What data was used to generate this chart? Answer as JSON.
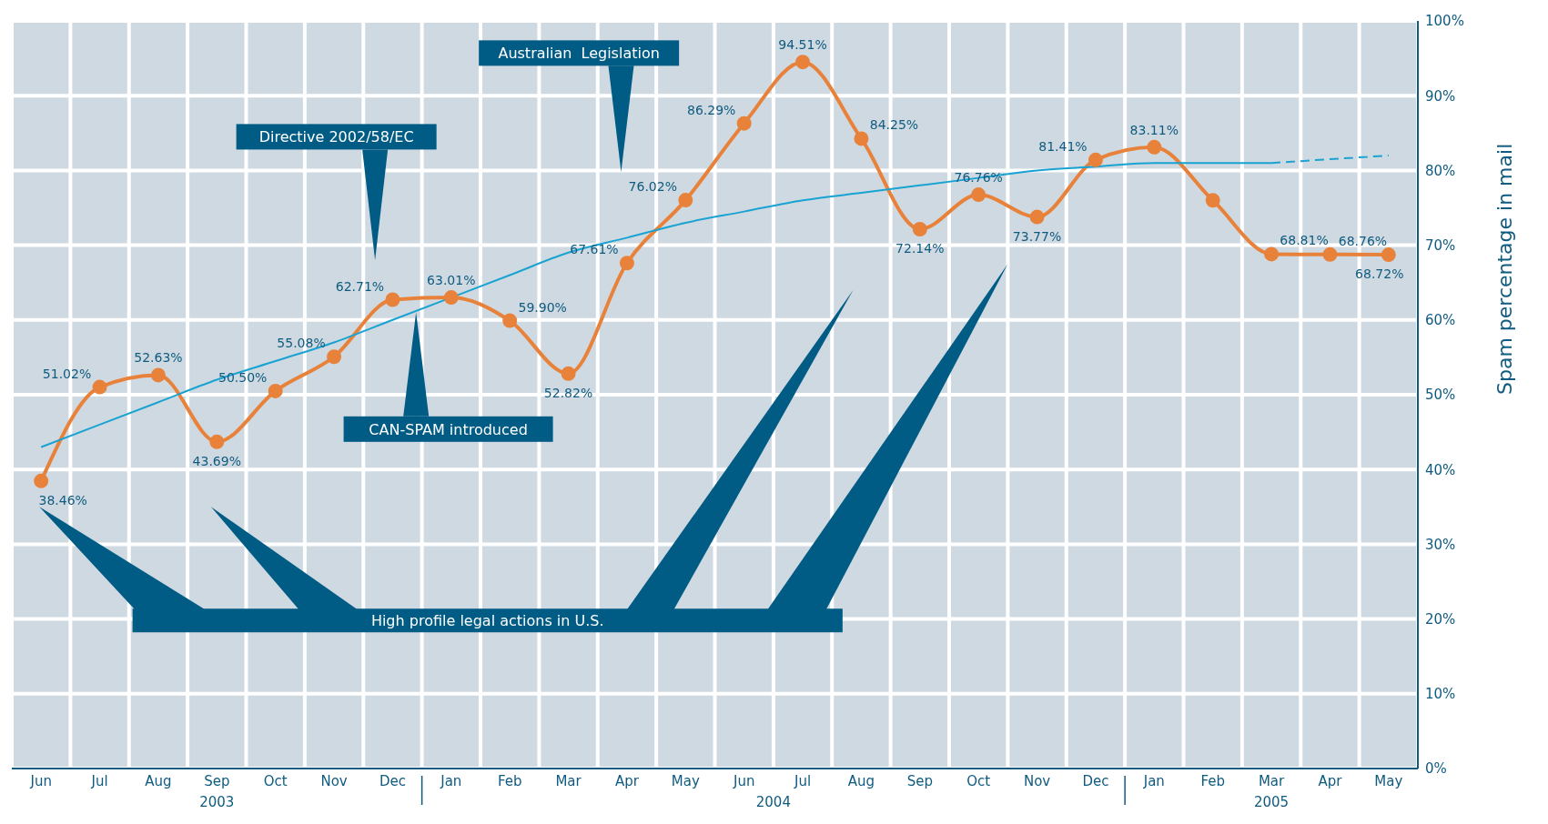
{
  "chart_data": {
    "type": "line",
    "ylabel": "Spam percentage in mail",
    "categories": [
      "Jun",
      "Jul",
      "Aug",
      "Sep",
      "Oct",
      "Nov",
      "Dec",
      "Jan",
      "Feb",
      "Mar",
      "Apr",
      "May",
      "Jun",
      "Jul",
      "Aug",
      "Sep",
      "Oct",
      "Nov",
      "Dec",
      "Jan",
      "Feb",
      "Mar",
      "Apr",
      "May"
    ],
    "series": [
      {
        "color": "#e8823a",
        "marker": "circle",
        "line_style": "solid",
        "values": [
          38.46,
          51.02,
          52.63,
          43.69,
          50.5,
          55.08,
          62.71,
          63.01,
          59.9,
          52.82,
          67.61,
          76.02,
          86.29,
          94.51,
          84.25,
          72.14,
          76.76,
          73.77,
          81.41,
          83.11,
          76,
          68.81,
          68.76,
          68.72
        ],
        "value_labels": [
          "38.46%",
          "51.02%",
          "52.63%",
          "43.69%",
          "50.50%",
          "55.08%",
          "62.71%",
          "63.01%",
          "59.90%",
          "52.82%",
          "67.61%",
          "76.02%",
          "86.29%",
          "94.51%",
          "84.25%",
          "72.14%",
          "76.76%",
          "73.77%",
          "81.41%",
          "83.11%",
          null,
          "68.81%",
          "68.76%",
          "68.72%"
        ]
      },
      {
        "color": "#19a3d3",
        "marker": "none",
        "line_style": "solid",
        "values": [
          43,
          46,
          49,
          52,
          54.5,
          57,
          60,
          63,
          66,
          69,
          71,
          73,
          74.5,
          76,
          77,
          78,
          79,
          80,
          80.5,
          81,
          81,
          81,
          null,
          null
        ]
      },
      {
        "color": "#19a3d3",
        "marker": "none",
        "line_style": "dashed",
        "values": [
          null,
          null,
          null,
          null,
          null,
          null,
          null,
          null,
          null,
          null,
          null,
          null,
          null,
          null,
          null,
          null,
          null,
          null,
          null,
          null,
          null,
          81,
          81.5,
          82
        ]
      }
    ],
    "ylim": [
      0,
      100
    ],
    "yticks": [
      {
        "value": 0,
        "label": "0%"
      },
      {
        "value": 10,
        "label": "10%"
      },
      {
        "value": 20,
        "label": "20%"
      },
      {
        "value": 30,
        "label": "30%"
      },
      {
        "value": 40,
        "label": "40%"
      },
      {
        "value": 50,
        "label": "50%"
      },
      {
        "value": 60,
        "label": "60%"
      },
      {
        "value": 70,
        "label": "70%"
      },
      {
        "value": 80,
        "label": "80%"
      },
      {
        "value": 90,
        "label": "90%"
      },
      {
        "value": 100,
        "label": "100%"
      }
    ],
    "grid": true,
    "annotations": [
      "Australian  Legislation",
      "Directive 2002/58/EC",
      "CAN-SPAM introduced",
      "High profile legal actions in U.S.",
      "2003",
      "2004",
      "2005"
    ]
  }
}
